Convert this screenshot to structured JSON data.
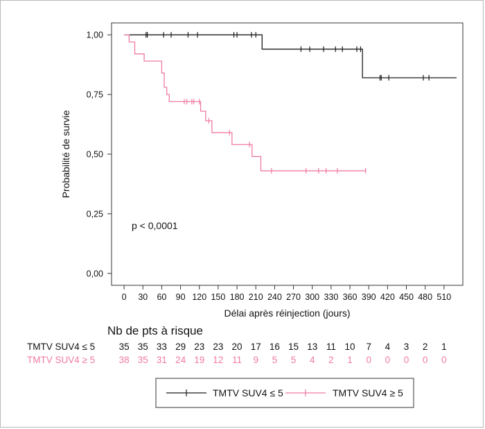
{
  "chart_data": {
    "type": "line",
    "step": true,
    "ylabel": "Probabilité de survie",
    "xlabel": "Délai après réinjection (jours)",
    "xlim": [
      -20,
      540
    ],
    "ylim": [
      -0.05,
      1.05
    ],
    "x_ticks": [
      0,
      30,
      60,
      90,
      120,
      150,
      180,
      210,
      240,
      270,
      300,
      330,
      360,
      390,
      420,
      450,
      480,
      510
    ],
    "y_ticks": [
      1,
      0.75,
      0.5,
      0.25,
      0
    ],
    "y_tick_labels": [
      "1,00",
      "0,75",
      "0,50",
      "0,25",
      "0,00"
    ],
    "annotation": "p < 0,0001",
    "grid": false,
    "legend_position": "bottom",
    "series": [
      {
        "name": "TMTV SUV4 ≤ 5",
        "color": "#1a1a1a",
        "steps": [
          [
            0,
            1.0
          ],
          [
            220,
            0.94
          ],
          [
            380,
            0.82
          ],
          [
            530,
            0.82
          ]
        ],
        "censors": [
          35,
          37,
          63,
          75,
          102,
          117,
          175,
          180,
          203,
          210,
          282,
          296,
          318,
          337,
          348,
          371,
          377,
          408,
          410,
          422,
          477,
          486
        ]
      },
      {
        "name": "TMTV SUV4 ≥ 5",
        "color": "#f07aa3",
        "steps": [
          [
            0,
            1.0
          ],
          [
            8,
            0.97
          ],
          [
            17,
            0.92
          ],
          [
            32,
            0.89
          ],
          [
            60,
            0.84
          ],
          [
            64,
            0.78
          ],
          [
            68,
            0.75
          ],
          [
            72,
            0.72
          ],
          [
            118,
            0.72
          ],
          [
            122,
            0.68
          ],
          [
            130,
            0.64
          ],
          [
            140,
            0.59
          ],
          [
            172,
            0.54
          ],
          [
            204,
            0.49
          ],
          [
            218,
            0.43
          ],
          [
            385,
            0.43
          ]
        ],
        "censors": [
          96,
          100,
          108,
          111,
          120,
          135,
          168,
          200,
          235,
          290,
          310,
          322,
          340,
          385
        ]
      }
    ],
    "risk_table": {
      "title": "Nb de pts à risque",
      "times": [
        0,
        30,
        60,
        90,
        120,
        150,
        180,
        210,
        240,
        270,
        300,
        330,
        360,
        390,
        420,
        450,
        480,
        510
      ],
      "rows": [
        {
          "label": "TMTV SUV4 ≤ 5",
          "color": "#111111",
          "values": [
            35,
            35,
            33,
            29,
            23,
            23,
            20,
            17,
            16,
            15,
            13,
            11,
            10,
            7,
            4,
            3,
            2,
            1
          ]
        },
        {
          "label": "TMTV SUV4 ≥ 5",
          "color": "#f07aa3",
          "values": [
            38,
            35,
            31,
            24,
            19,
            12,
            11,
            9,
            5,
            5,
            4,
            2,
            1,
            0,
            0,
            0,
            0,
            0
          ]
        }
      ]
    }
  }
}
